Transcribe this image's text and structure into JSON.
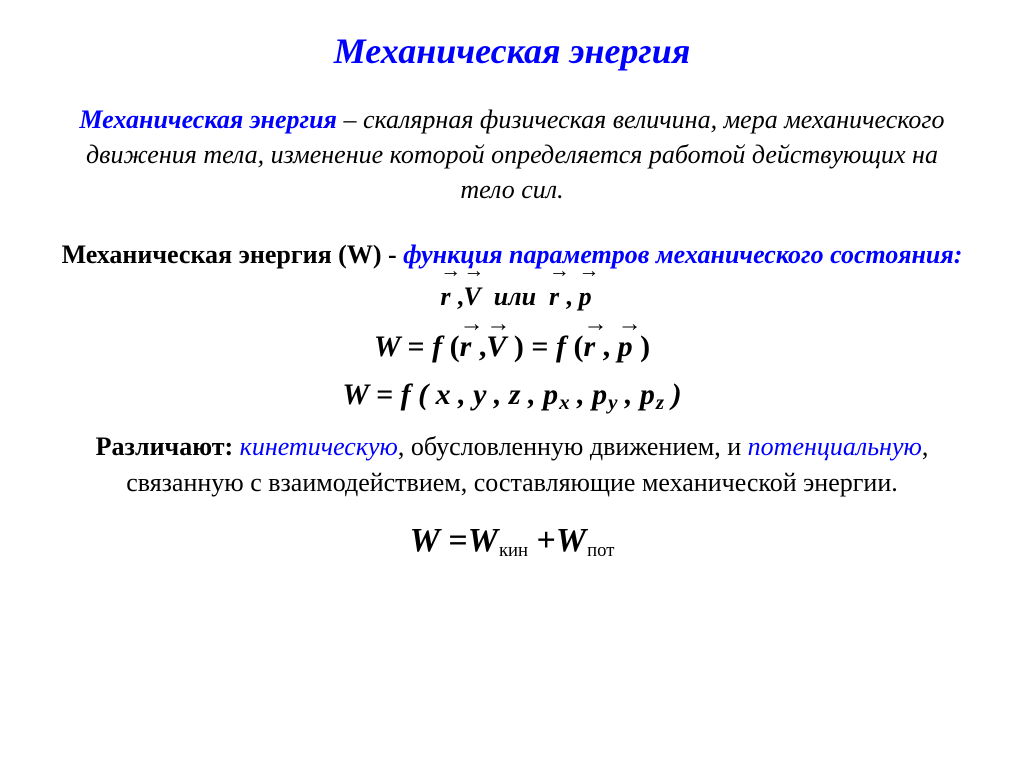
{
  "title": "Механическая энергия",
  "definition": {
    "lead": "Механическая энергия",
    "rest": " – скалярная физическая величина, мера механического движения тела, изменение которой определяется работой  действующих на тело сил."
  },
  "function_line": {
    "pre": "Механическая энергия (W) - ",
    "blue": "функция параметров механического состояния:",
    "vec_r": "r",
    "vec_V": "V",
    "vec_p": "p",
    "or": "или"
  },
  "eq1": {
    "W": "W",
    "eq": " = ",
    "f": "f",
    "open": " (",
    "r": "r",
    "comma": " ,",
    "V": "V",
    "close": " )",
    "p": "p"
  },
  "eq2": {
    "W": "W",
    "text": " =  f ( x , y , z , p",
    "x": "x",
    "mid1": " , p",
    "y": "y",
    "mid2": " , p",
    "z": "z",
    "end": " )"
  },
  "types": {
    "lead": "Различают: ",
    "kinetic": "кинетическую",
    "mid1": ", обусловленную движением, и ",
    "potential": "потенциальную",
    "mid2": ", связанную с взаимодействием, составляющие механической энергии."
  },
  "eq_final": {
    "W": "W",
    "eq": " =",
    "Wk": "W",
    "kin": "кин",
    "plus": " +",
    "Wp": "W",
    "pot": "пот"
  },
  "colors": {
    "accent": "#0000ff",
    "text": "#000000",
    "bg": "#ffffff"
  }
}
